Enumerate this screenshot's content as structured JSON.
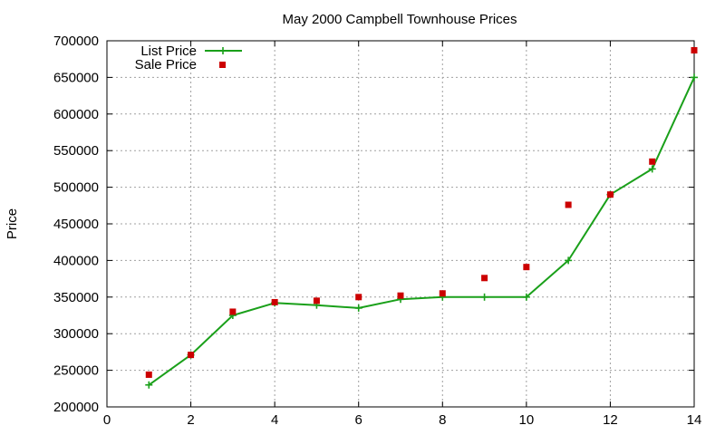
{
  "chart_data": {
    "type": "line",
    "title": "May 2000 Campbell Townhouse Prices",
    "xlabel": "",
    "ylabel": "Price",
    "xlim": [
      0,
      14
    ],
    "ylim": [
      200000,
      700000
    ],
    "x_ticks": [
      0,
      2,
      4,
      6,
      8,
      10,
      12,
      14
    ],
    "y_ticks": [
      200000,
      250000,
      300000,
      350000,
      400000,
      450000,
      500000,
      550000,
      600000,
      650000,
      700000
    ],
    "grid": true,
    "legend_position": "top-left",
    "series": [
      {
        "name": "List Price",
        "style": "line-with-plus-markers",
        "color": "#1aa01a",
        "x": [
          1,
          2,
          3,
          4,
          5,
          6,
          7,
          8,
          9,
          10,
          11,
          12,
          13,
          14
        ],
        "values": [
          230000,
          271000,
          325000,
          342000,
          339000,
          335000,
          347000,
          350000,
          350000,
          350000,
          400000,
          490000,
          525000,
          650000
        ]
      },
      {
        "name": "Sale Price",
        "style": "square-points",
        "color": "#cc0000",
        "x": [
          1,
          2,
          3,
          4,
          5,
          6,
          7,
          8,
          9,
          10,
          11,
          12,
          13,
          14
        ],
        "values": [
          244000,
          271000,
          330000,
          343000,
          345000,
          350000,
          352000,
          355000,
          376000,
          391000,
          476000,
          490000,
          535000,
          687000
        ]
      }
    ]
  }
}
